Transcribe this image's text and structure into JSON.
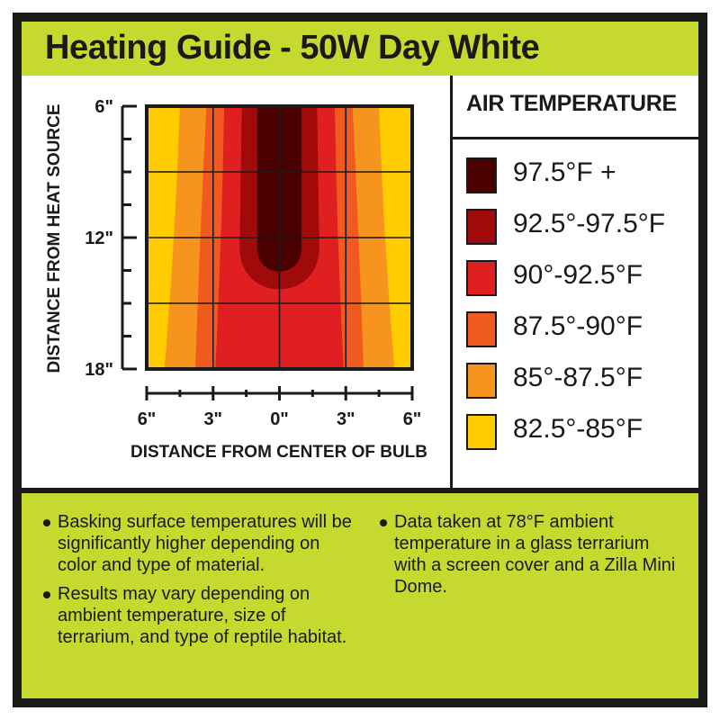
{
  "title": "Heating Guide - 50W Day White",
  "legend": {
    "title": "AIR TEMPERATURE",
    "items": [
      {
        "label": "97.5°F +",
        "color": "#4a0000"
      },
      {
        "label": "92.5°-97.5°F",
        "color": "#a00a0a"
      },
      {
        "label": "90°-92.5°F",
        "color": "#e02020"
      },
      {
        "label": "87.5°-90°F",
        "color": "#f05a1e"
      },
      {
        "label": "85°-87.5°F",
        "color": "#f7941d"
      },
      {
        "label": "82.5°-85°F",
        "color": "#ffcc00"
      }
    ]
  },
  "chart_data": {
    "type": "heatmap",
    "title": "Heating Guide - 50W Day White",
    "xlabel": "DISTANCE FROM CENTER OF BULB",
    "ylabel": "DISTANCE FROM HEAT SOURCE",
    "x_tick_labels": [
      "6\"",
      "3\"",
      "0\"",
      "3\"",
      "6\""
    ],
    "y_tick_labels": [
      "6\"",
      "12\"",
      "18\""
    ],
    "xlim": [
      -6,
      6
    ],
    "ylim": [
      6,
      18
    ],
    "grid": true,
    "zones": [
      {
        "label": "82.5°-85°F",
        "color": "#ffcc00",
        "half_width": [
          6,
          6,
          6
        ]
      },
      {
        "label": "85°-87.5°F",
        "color": "#f7941d",
        "half_width": [
          4.5,
          4.7,
          5.2
        ]
      },
      {
        "label": "87.5°-90°F",
        "color": "#f05a1e",
        "half_width": [
          3.3,
          3.6,
          3.8
        ]
      },
      {
        "label": "90°-92.5°F",
        "color": "#e02020",
        "half_width": [
          2.5,
          2.6,
          2.9
        ]
      },
      {
        "label": "92.5°-97.5°F",
        "color": "#a00a0a",
        "half_width": [
          1.7,
          1.8
        ],
        "bottom_y": 15
      },
      {
        "label": "97.5°F +",
        "color": "#4a0000",
        "half_width": [
          1,
          1
        ],
        "bottom_y": 13.9
      }
    ]
  },
  "notes": {
    "left": [
      "Basking surface temperatures will be significantly higher depending on color and type of material.",
      "Results may vary depending on ambient temperature, size of terrarium, and type of reptile habitat."
    ],
    "right": [
      "Data taken at 78°F ambient temperature in a glass terrarium with a screen cover and a Zilla Mini Dome."
    ]
  }
}
